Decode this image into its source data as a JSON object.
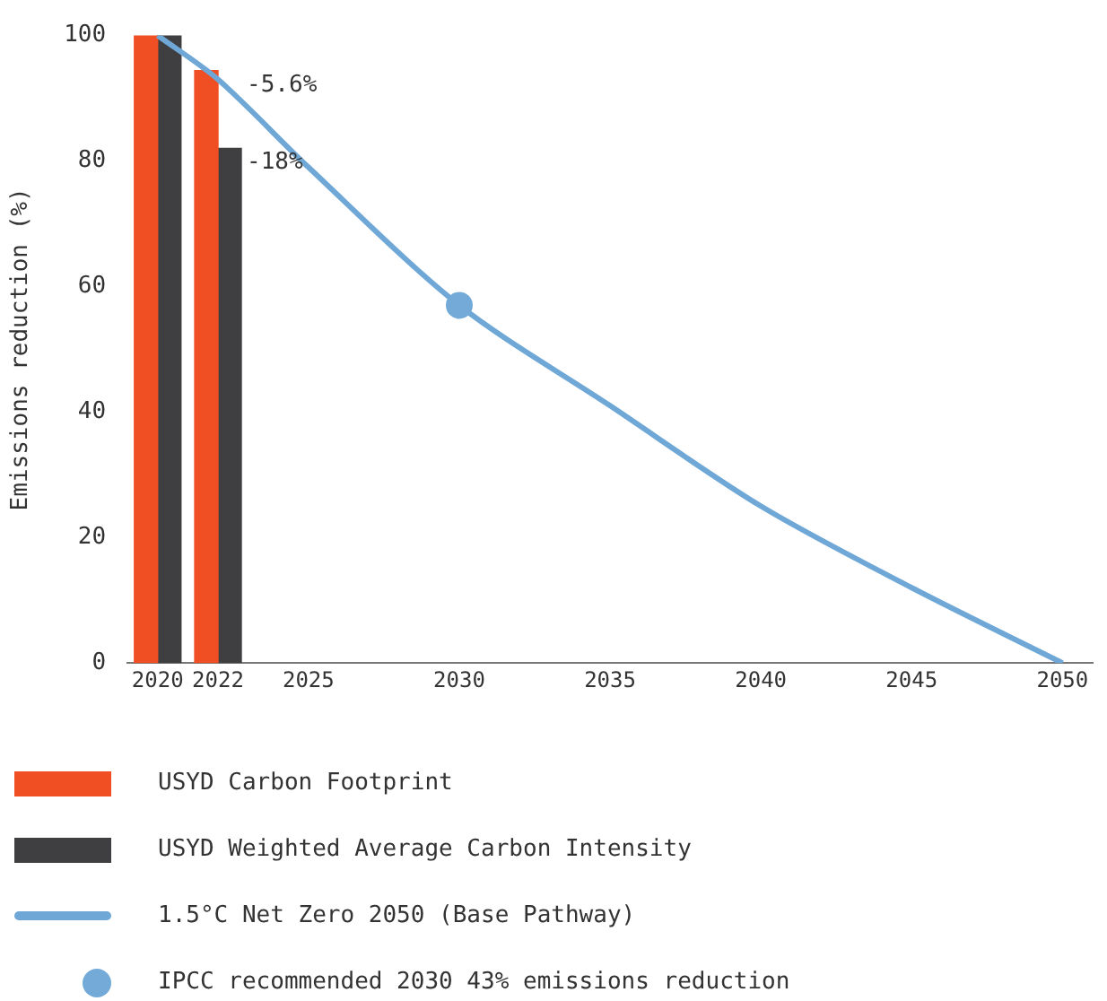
{
  "chart_data": {
    "type": "bar",
    "ylabel": "Emissions reduction (%)",
    "xlim": [
      2019,
      2051
    ],
    "xticks": [
      2020,
      2022,
      2025,
      2030,
      2035,
      2040,
      2045,
      2050
    ],
    "ylim": [
      0,
      100
    ],
    "yticks": [
      0,
      20,
      40,
      60,
      80,
      100
    ],
    "grid": false,
    "legend": "bottom",
    "series": [
      {
        "name": "USYD Carbon Footprint",
        "color": "#f04e23",
        "x": [
          2020,
          2022
        ],
        "values": [
          100,
          94.4
        ]
      },
      {
        "name": "USYD Weighted Average Carbon Intensity",
        "color": "#3f3f41",
        "x": [
          2020,
          2022
        ],
        "values": [
          100,
          82
        ]
      },
      {
        "name": "1.5°C Net Zero 2050 (Base Pathway)",
        "type": "line",
        "color": "#6fa8d6",
        "marker": "none",
        "x": [
          2020,
          2022,
          2025,
          2030,
          2035,
          2040,
          2045,
          2050
        ],
        "values": [
          100,
          93,
          79,
          57,
          41,
          25,
          12,
          0
        ]
      },
      {
        "name": "IPCC recommended 2030 43% emissions reduction",
        "type": "scatter",
        "color": "#73aad8",
        "marker": "circle",
        "x": [
          2030
        ],
        "values": [
          57
        ]
      }
    ],
    "annotations": [
      {
        "text": "-5.6%",
        "x": 2022,
        "y": 94.4
      },
      {
        "text": "-18%",
        "x": 2022,
        "y": 82
      }
    ]
  }
}
